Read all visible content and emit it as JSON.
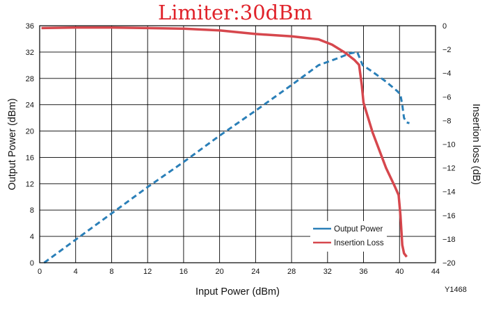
{
  "title": "Limiter:30dBm",
  "figure_code": "Y1468",
  "colors": {
    "output_power": "#2a7fb8",
    "insertion_loss": "#d6474d",
    "title": "#e0222a",
    "grid": "#000000"
  },
  "chart_data": {
    "type": "line",
    "title": "Limiter:30dBm",
    "xlabel": "Input Power (dBm)",
    "ylabel": "Output Power (dBm)",
    "y2label": "Insertion loss (dB)",
    "xlim": [
      0,
      44
    ],
    "ylim": [
      0,
      36
    ],
    "y2lim": [
      -20,
      0
    ],
    "xticks": [
      0,
      4,
      8,
      12,
      16,
      20,
      24,
      28,
      32,
      36,
      40,
      44
    ],
    "yticks": [
      0,
      4,
      8,
      12,
      16,
      20,
      24,
      28,
      32,
      36
    ],
    "y2ticks": [
      0,
      -2,
      -4,
      -6,
      -8,
      -10,
      -12,
      -14,
      -16,
      -18,
      -20
    ],
    "grid": true,
    "legend_position": "bottom-right",
    "series": [
      {
        "name": "Output Power",
        "axis": "left",
        "style": "dashed",
        "points": [
          [
            0.5,
            0
          ],
          [
            4,
            3.5
          ],
          [
            8,
            7.5
          ],
          [
            12,
            11.5
          ],
          [
            16,
            15.3
          ],
          [
            20,
            19.3
          ],
          [
            24,
            23.1
          ],
          [
            28,
            27
          ],
          [
            31,
            30
          ],
          [
            33,
            31
          ],
          [
            34.5,
            31.8
          ],
          [
            35.3,
            32
          ],
          [
            35.6,
            31
          ],
          [
            35.9,
            30
          ],
          [
            37,
            29
          ],
          [
            38.5,
            27.5
          ],
          [
            39.8,
            26
          ],
          [
            40.1,
            25.5
          ],
          [
            40.3,
            24
          ],
          [
            40.5,
            22
          ],
          [
            40.8,
            21.3
          ],
          [
            41.1,
            21.2
          ]
        ]
      },
      {
        "name": "Insertion Loss",
        "axis": "right",
        "style": "solid",
        "points": [
          [
            0.2,
            -0.2
          ],
          [
            4,
            -0.15
          ],
          [
            8,
            -0.15
          ],
          [
            12,
            -0.2
          ],
          [
            16,
            -0.25
          ],
          [
            20,
            -0.4
          ],
          [
            24,
            -0.7
          ],
          [
            28,
            -0.9
          ],
          [
            31,
            -1.15
          ],
          [
            32.5,
            -1.6
          ],
          [
            34,
            -2.3
          ],
          [
            35,
            -2.9
          ],
          [
            35.5,
            -3.3
          ],
          [
            35.8,
            -5
          ],
          [
            36,
            -6.5
          ],
          [
            37,
            -9
          ],
          [
            38.5,
            -12
          ],
          [
            39.5,
            -13.6
          ],
          [
            39.9,
            -14.3
          ],
          [
            40.1,
            -16
          ],
          [
            40.3,
            -18.5
          ],
          [
            40.5,
            -19.2
          ],
          [
            40.8,
            -19.5
          ]
        ]
      }
    ]
  }
}
